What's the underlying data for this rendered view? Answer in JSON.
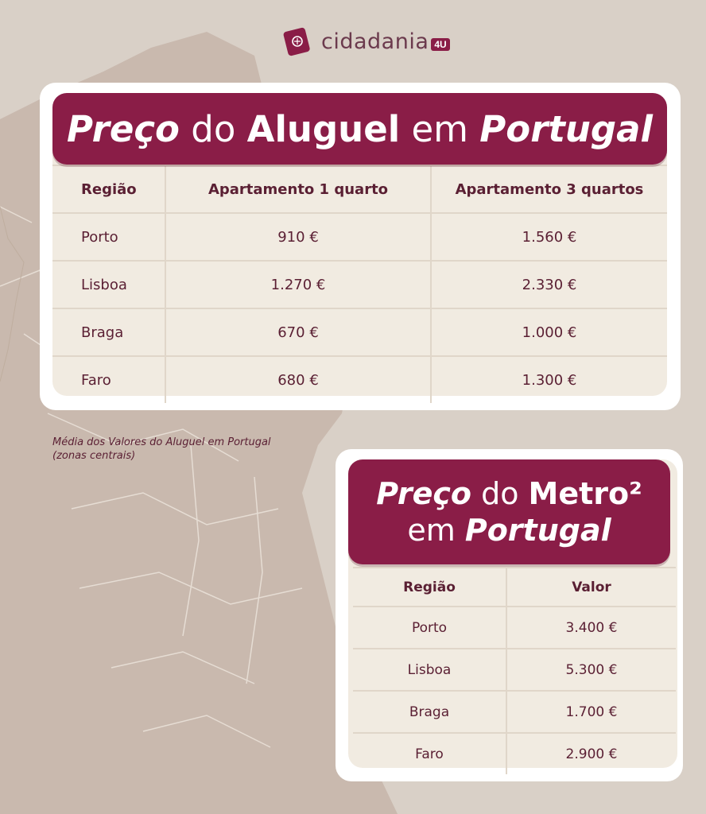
{
  "logo": {
    "text": "cidadania",
    "badge": "4U",
    "icon": "passport-icon"
  },
  "rent_card": {
    "title_parts": [
      "Preço",
      " do ",
      "Aluguel",
      " em ",
      "Portugal"
    ],
    "columns": [
      "Região",
      "Apartamento 1 quarto",
      "Apartamento 3 quartos"
    ],
    "rows": [
      [
        "Porto",
        "910 €",
        "1.560 €"
      ],
      [
        "Lisboa",
        "1.270 €",
        "2.330 €"
      ],
      [
        "Braga",
        "670 €",
        "1.000 €"
      ],
      [
        "Faro",
        "680 €",
        "1.300 €"
      ]
    ]
  },
  "note": {
    "line1": "Média dos Valores do Aluguel em Portugal",
    "line2": "(zonas centrais)"
  },
  "sqm_card": {
    "title_line1_parts": [
      "Preço",
      " do ",
      "Metro²"
    ],
    "title_line2_parts": [
      "em ",
      "Portugal"
    ],
    "columns": [
      "Região",
      "Valor"
    ],
    "rows": [
      [
        "Porto",
        "3.400 €"
      ],
      [
        "Lisboa",
        "5.300 €"
      ],
      [
        "Braga",
        "1.700 €"
      ],
      [
        "Faro",
        "2.900 €"
      ]
    ]
  },
  "colors": {
    "brand": "#8a1d47",
    "background": "#d9d0c7",
    "map": "#c9b9ae",
    "table_bg": "#f1ebe1",
    "text": "#5a1f33"
  }
}
